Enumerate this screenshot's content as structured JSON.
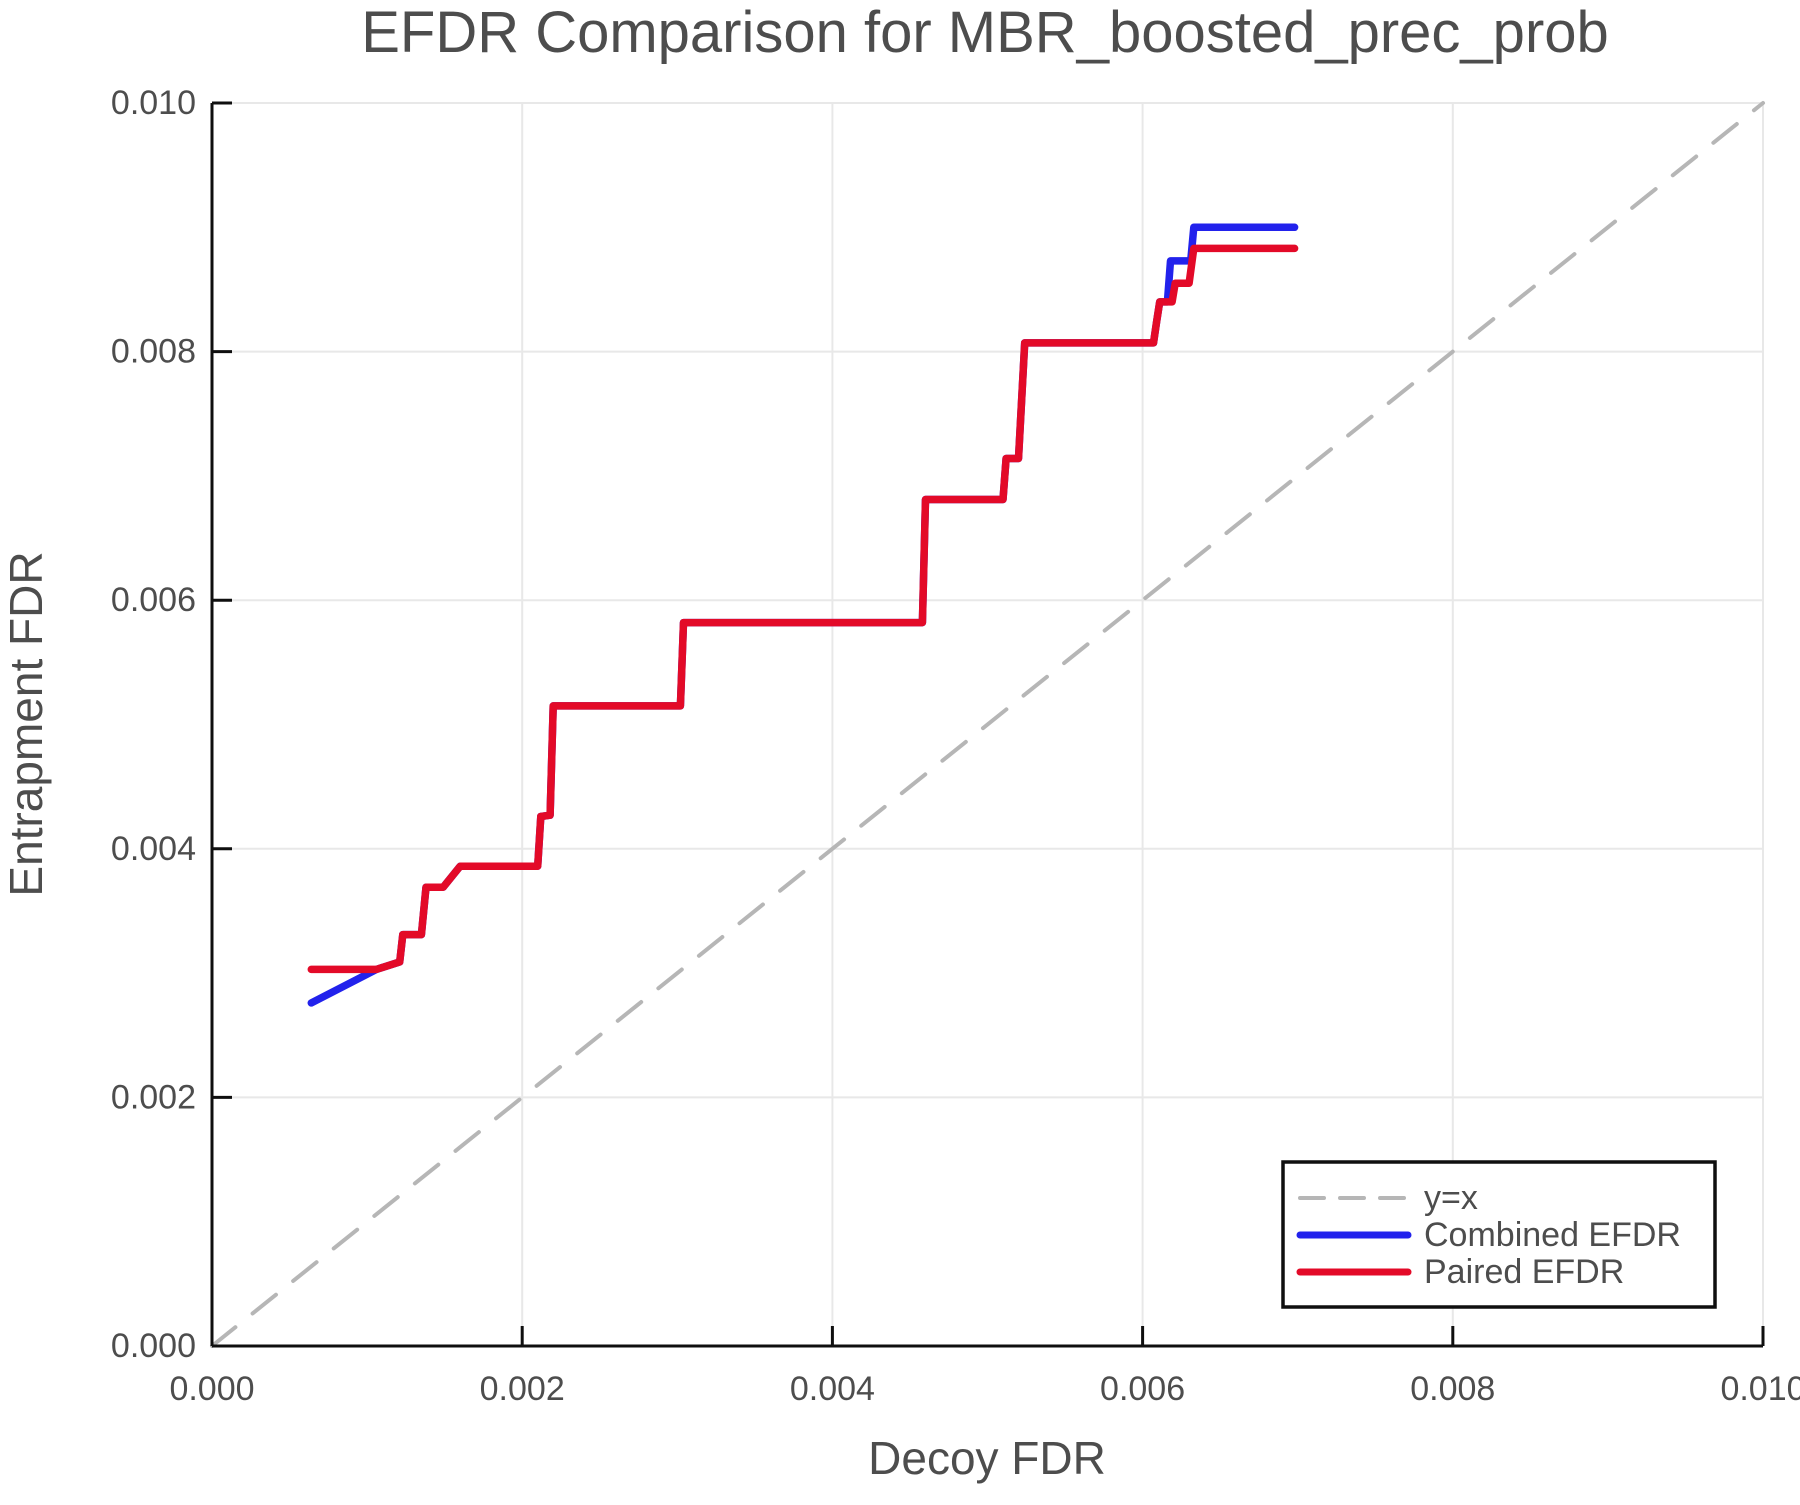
{
  "chart_data": {
    "type": "line",
    "title": "EFDR Comparison for MBR_boosted_prec_prob",
    "xlabel": "Decoy FDR",
    "ylabel": "Entrapment FDR",
    "xlim": [
      0,
      0.01
    ],
    "ylim": [
      0,
      0.01
    ],
    "grid": true,
    "legend_position": "bottom-right",
    "xticks": {
      "values": [
        0,
        0.002,
        0.004,
        0.006,
        0.008,
        0.01
      ],
      "labels": [
        "0.000",
        "0.002",
        "0.004",
        "0.006",
        "0.008",
        "0.010"
      ]
    },
    "yticks": {
      "values": [
        0,
        0.002,
        0.004,
        0.006,
        0.008,
        0.01
      ],
      "labels": [
        "0.000",
        "0.002",
        "0.004",
        "0.006",
        "0.008",
        "0.010"
      ]
    },
    "series": [
      {
        "name": "y=x",
        "color": "#b6b6b6",
        "dashed": true,
        "width": 4,
        "points": [
          [
            0,
            0
          ],
          [
            0.01,
            0.01
          ]
        ]
      },
      {
        "name": "Combined EFDR",
        "color": "#2222ec",
        "dashed": false,
        "width": 7.5,
        "points": [
          [
            0.00064,
            0.00276
          ],
          [
            0.00106,
            0.00303
          ],
          [
            0.00121,
            0.00309
          ],
          [
            0.00123,
            0.00331
          ],
          [
            0.00135,
            0.00331
          ],
          [
            0.00138,
            0.00369
          ],
          [
            0.00149,
            0.00369
          ],
          [
            0.0016,
            0.00386
          ],
          [
            0.0021,
            0.00386
          ],
          [
            0.00212,
            0.00426
          ],
          [
            0.00218,
            0.00427
          ],
          [
            0.0022,
            0.00515
          ],
          [
            0.00302,
            0.00515
          ],
          [
            0.00304,
            0.00582
          ],
          [
            0.00458,
            0.00582
          ],
          [
            0.0046,
            0.00681
          ],
          [
            0.0051,
            0.00681
          ],
          [
            0.00512,
            0.00714
          ],
          [
            0.0052,
            0.00714
          ],
          [
            0.00524,
            0.00807
          ],
          [
            0.00607,
            0.00807
          ],
          [
            0.00609,
            0.00824
          ],
          [
            0.00611,
            0.0084
          ],
          [
            0.00616,
            0.0084
          ],
          [
            0.00618,
            0.00873
          ],
          [
            0.00631,
            0.00873
          ],
          [
            0.00633,
            0.009
          ],
          [
            0.00698,
            0.009
          ]
        ]
      },
      {
        "name": "Paired EFDR",
        "color": "#e30a28",
        "dashed": false,
        "width": 7.5,
        "points": [
          [
            0.00064,
            0.00303
          ],
          [
            0.00106,
            0.00303
          ],
          [
            0.00121,
            0.00309
          ],
          [
            0.00123,
            0.00331
          ],
          [
            0.00135,
            0.00331
          ],
          [
            0.00138,
            0.00369
          ],
          [
            0.00149,
            0.00369
          ],
          [
            0.0016,
            0.00386
          ],
          [
            0.0021,
            0.00386
          ],
          [
            0.00212,
            0.00426
          ],
          [
            0.00218,
            0.00427
          ],
          [
            0.0022,
            0.00515
          ],
          [
            0.00302,
            0.00515
          ],
          [
            0.00304,
            0.00582
          ],
          [
            0.00458,
            0.00582
          ],
          [
            0.0046,
            0.00681
          ],
          [
            0.0051,
            0.00681
          ],
          [
            0.00512,
            0.00714
          ],
          [
            0.0052,
            0.00714
          ],
          [
            0.00524,
            0.00807
          ],
          [
            0.00607,
            0.00807
          ],
          [
            0.00609,
            0.00824
          ],
          [
            0.00611,
            0.0084
          ],
          [
            0.00619,
            0.0084
          ],
          [
            0.00621,
            0.00855
          ],
          [
            0.0063,
            0.00855
          ],
          [
            0.00633,
            0.00883
          ],
          [
            0.00698,
            0.00883
          ]
        ]
      }
    ]
  },
  "colors": {
    "background": "#ffffff",
    "grid": "#e8e8e8",
    "spine": "#0f0f0f",
    "text": "#4d4d4d",
    "legend_border": "#0f0f0f"
  }
}
